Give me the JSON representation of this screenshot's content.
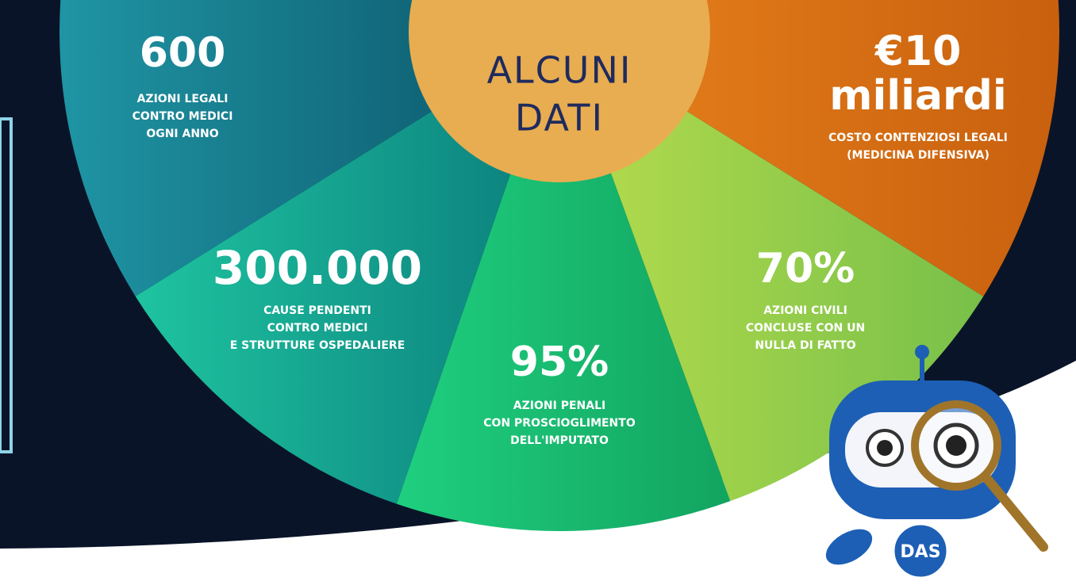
{
  "header": {
    "title_lines": [
      "ALCUNI",
      "DATI"
    ]
  },
  "stats": [
    {
      "figure_lines": [
        "600"
      ],
      "lines": [
        "AZIONI LEGALI",
        "CONTRO MEDICI",
        "OGNI ANNO"
      ]
    },
    {
      "figure_lines": [
        "300.000"
      ],
      "lines": [
        "CAUSE PENDENTI",
        "CONTRO MEDICI",
        "E STRUTTURE OSPEDALIERE"
      ]
    },
    {
      "figure_lines": [
        "95%"
      ],
      "lines": [
        "AZIONI PENALI",
        "CON PROSCIOGLIMENTO",
        "DELL'IMPUTATO"
      ]
    },
    {
      "figure_lines": [
        "70%"
      ],
      "lines": [
        "AZIONI CIVILI",
        "CONCLUSE CON UN",
        "NULLA DI FATTO"
      ]
    },
    {
      "figure_lines": [
        "€10",
        "miliardi"
      ],
      "lines": [
        "COSTO CONTENZIOSI LEGALI",
        "(MEDICINA DIFENSIVA)"
      ]
    }
  ],
  "logo": "DAS"
}
